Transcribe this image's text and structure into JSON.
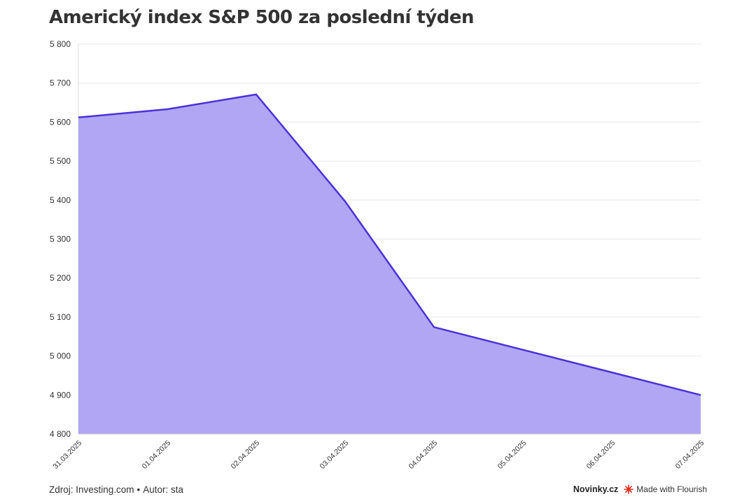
{
  "title": "Americký index S&P 500 za poslední týden",
  "footer": {
    "source": "Zdroj: Investing.com",
    "separator": "•",
    "author": "Autor: sta",
    "brand": "Novinky.cz",
    "made_with": "Made with Flourish"
  },
  "colors": {
    "line": "#4b32d6",
    "area": "#b0a6f3",
    "grid": "#e6e6e6",
    "text": "#333333",
    "flourish": "#e0301e"
  },
  "chart_data": {
    "type": "area",
    "title": "Americký index S&P 500 za poslední týden",
    "xlabel": "",
    "ylabel": "",
    "x": [
      "31.03.2025",
      "01.04.2025",
      "02.04.2025",
      "03.04.2025",
      "04.04.2025",
      "05.04.2025",
      "06.04.2025",
      "07.04.2025"
    ],
    "series": [
      {
        "values": [
          5611.85,
          5633.07,
          5670.97,
          5396.52,
          5074.08,
          5016,
          4958,
          4900
        ]
      }
    ],
    "ylim": [
      4800,
      5800
    ],
    "yticks": [
      4800,
      4900,
      5000,
      5100,
      5200,
      5300,
      5400,
      5500,
      5600,
      5700,
      5800
    ],
    "ytick_labels": [
      "4 800",
      "4 900",
      "5 000",
      "5 100",
      "5 200",
      "5 300",
      "5 400",
      "5 500",
      "5 600",
      "5 700",
      "5 800"
    ],
    "grid": true
  }
}
